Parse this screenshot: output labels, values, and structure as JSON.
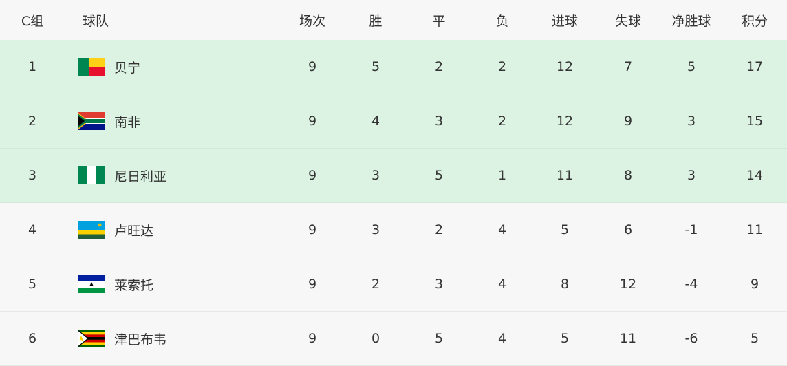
{
  "headers": {
    "group": "C组",
    "team": "球队",
    "played": "场次",
    "won": "胜",
    "drawn": "平",
    "lost": "负",
    "gf": "进球",
    "ga": "失球",
    "gd": "净胜球",
    "pts": "积分"
  },
  "colors": {
    "qualified_row": "#dcf3e3",
    "row": "#f7f7f7"
  },
  "rows": [
    {
      "rank": "1",
      "team": "贝宁",
      "flag": "benin-flag",
      "played": "9",
      "won": "5",
      "drawn": "2",
      "lost": "2",
      "gf": "12",
      "ga": "7",
      "gd": "5",
      "pts": "17",
      "highlight": true
    },
    {
      "rank": "2",
      "team": "南非",
      "flag": "south-africa-flag",
      "played": "9",
      "won": "4",
      "drawn": "3",
      "lost": "2",
      "gf": "12",
      "ga": "9",
      "gd": "3",
      "pts": "15",
      "highlight": true
    },
    {
      "rank": "3",
      "team": "尼日利亚",
      "flag": "nigeria-flag",
      "played": "9",
      "won": "3",
      "drawn": "5",
      "lost": "1",
      "gf": "11",
      "ga": "8",
      "gd": "3",
      "pts": "14",
      "highlight": true
    },
    {
      "rank": "4",
      "team": "卢旺达",
      "flag": "rwanda-flag",
      "played": "9",
      "won": "3",
      "drawn": "2",
      "lost": "4",
      "gf": "5",
      "ga": "6",
      "gd": "-1",
      "pts": "11",
      "highlight": false
    },
    {
      "rank": "5",
      "team": "莱索托",
      "flag": "lesotho-flag",
      "played": "9",
      "won": "2",
      "drawn": "3",
      "lost": "4",
      "gf": "8",
      "ga": "12",
      "gd": "-4",
      "pts": "9",
      "highlight": false
    },
    {
      "rank": "6",
      "team": "津巴布韦",
      "flag": "zimbabwe-flag",
      "played": "9",
      "won": "0",
      "drawn": "5",
      "lost": "4",
      "gf": "5",
      "ga": "11",
      "gd": "-6",
      "pts": "5",
      "highlight": false
    }
  ]
}
